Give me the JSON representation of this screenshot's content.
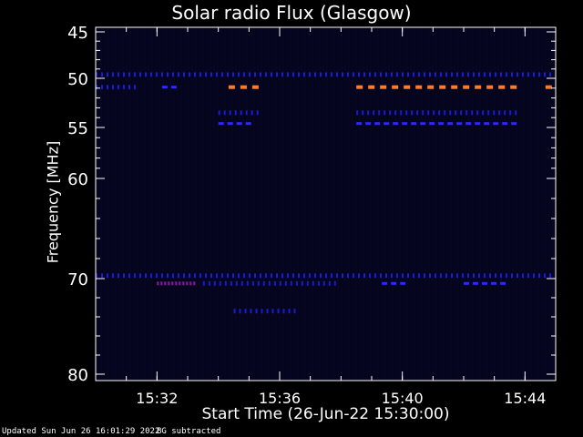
{
  "chart_data": {
    "type": "heatmap",
    "title": "Solar radio Flux (Glasgow)",
    "xlabel": "Start Time (26-Jun-22 15:30:00)",
    "ylabel": "Frequency [MHz]",
    "x_ticks": [
      "15:32",
      "15:36",
      "15:40",
      "15:44"
    ],
    "y_ticks": [
      "45",
      "50",
      "55",
      "60",
      "70",
      "80"
    ],
    "yaxis_reversed": true,
    "features": [
      {
        "freq": 49.6,
        "t_start": "15:30:00",
        "t_end": "15:45:00",
        "level": "low",
        "pattern": "dashed"
      },
      {
        "freq": 50.9,
        "t_start": "15:30:00",
        "t_end": "15:31:20",
        "level": "low",
        "pattern": "dashed"
      },
      {
        "freq": 50.9,
        "t_start": "15:32:10",
        "t_end": "15:32:50",
        "level": "medium",
        "pattern": "dashed"
      },
      {
        "freq": 50.9,
        "t_start": "15:34:20",
        "t_end": "15:35:40",
        "level": "high",
        "pattern": "dashed"
      },
      {
        "freq": 50.9,
        "t_start": "15:38:30",
        "t_end": "15:43:50",
        "level": "high",
        "pattern": "dashed"
      },
      {
        "freq": 50.9,
        "t_start": "15:44:40",
        "t_end": "15:45:00",
        "level": "high",
        "pattern": "dashed"
      },
      {
        "freq": 53.5,
        "t_start": "15:34:00",
        "t_end": "15:35:20",
        "level": "low",
        "pattern": "dashed"
      },
      {
        "freq": 53.5,
        "t_start": "15:38:30",
        "t_end": "15:43:50",
        "level": "low",
        "pattern": "dashed"
      },
      {
        "freq": 54.6,
        "t_start": "15:34:00",
        "t_end": "15:35:20",
        "level": "medium",
        "pattern": "dashed"
      },
      {
        "freq": 54.6,
        "t_start": "15:38:30",
        "t_end": "15:43:50",
        "level": "medium",
        "pattern": "dashed"
      },
      {
        "freq": 69.7,
        "t_start": "15:30:00",
        "t_end": "15:45:00",
        "level": "low",
        "pattern": "dashed"
      },
      {
        "freq": 70.5,
        "t_start": "15:32:00",
        "t_end": "15:33:20",
        "level": "elevated",
        "pattern": "dashed"
      },
      {
        "freq": 70.5,
        "t_start": "15:33:30",
        "t_end": "15:37:50",
        "level": "low",
        "pattern": "dashed"
      },
      {
        "freq": 70.5,
        "t_start": "15:39:20",
        "t_end": "15:40:10",
        "level": "medium",
        "pattern": "dashed"
      },
      {
        "freq": 70.5,
        "t_start": "15:42:00",
        "t_end": "15:43:30",
        "level": "medium",
        "pattern": "dashed"
      },
      {
        "freq": 73.4,
        "t_start": "15:34:30",
        "t_end": "15:36:40",
        "level": "low",
        "pattern": "dashed"
      }
    ],
    "level_colors": {
      "background": "#04041c",
      "low": "#1a1ad8",
      "medium": "#2a2aff",
      "elevated": "#8a1aa0",
      "high": "#ff7a2a"
    },
    "grid": false
  },
  "footer": {
    "updated": "Updated Sun Jun 26 16:01:29 2022",
    "note": "BG subtracted"
  }
}
